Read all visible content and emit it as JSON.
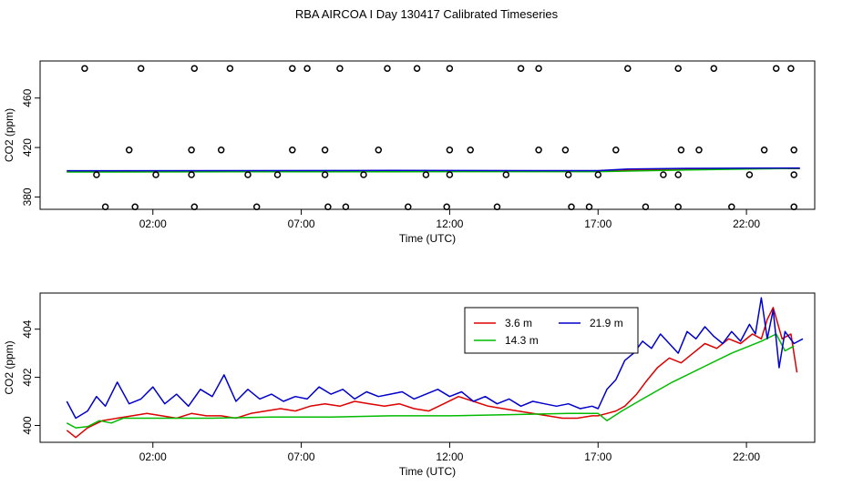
{
  "title": "RBA AIRCOA I  Day 130417  Calibrated Timeseries",
  "colors": {
    "s36": "#dd0000",
    "s143": "#00bb00",
    "s219": "#0000cc",
    "markers": "#000000"
  },
  "chart_data": [
    {
      "type": "line",
      "title": "",
      "xlabel": "Time (UTC)",
      "ylabel": "CO2 (ppm)",
      "xlim": [
        -1.8,
        24.3
      ],
      "ylim": [
        370,
        490
      ],
      "x_ticks": [
        2,
        7,
        12,
        17,
        22
      ],
      "x_tick_labels": [
        "02:00",
        "07:00",
        "12:00",
        "17:00",
        "22:00"
      ],
      "y_ticks": [
        380,
        420,
        460
      ],
      "y_tick_labels": [
        "380",
        "420",
        "460"
      ],
      "grid": false,
      "legend": "none",
      "series": [
        {
          "color": "#dd0000",
          "x": [
            -0.9,
            5,
            10,
            15,
            17,
            18,
            20,
            22,
            23.8
          ],
          "y": [
            400.5,
            400.6,
            400.8,
            400.7,
            400.6,
            401.6,
            402.2,
            402.9,
            403
          ]
        },
        {
          "color": "#00bb00",
          "x": [
            -0.9,
            5,
            10,
            15,
            17,
            18,
            20,
            22,
            23.8
          ],
          "y": [
            400.2,
            400.3,
            400.4,
            400.5,
            400.5,
            400.9,
            401.8,
            402.6,
            403.1
          ]
        },
        {
          "color": "#0000cc",
          "x": [
            -0.9,
            5,
            10,
            15,
            17,
            18,
            20,
            22,
            23.8
          ],
          "y": [
            401.2,
            401.3,
            401.4,
            401.3,
            401.3,
            402.6,
            403.1,
            403.3,
            403.4
          ]
        }
      ],
      "markers": {
        "style": "open-circle",
        "x": [
          -0.3,
          1.6,
          3.4,
          4.6,
          6.7,
          7.2,
          8.3,
          9.9,
          10.9,
          12.0,
          14.4,
          15.0,
          18.0,
          19.7,
          20.9,
          23.0,
          23.5,
          1.2,
          3.3,
          4.3,
          6.7,
          7.8,
          9.6,
          12.0,
          12.7,
          15.0,
          15.9,
          17.6,
          19.8,
          20.4,
          22.6,
          23.6,
          0.1,
          2.1,
          3.3,
          5.2,
          6.2,
          7.8,
          9.1,
          11.2,
          12.0,
          13.9,
          16.0,
          17.0,
          19.2,
          19.7,
          22.1,
          23.6,
          0.4,
          1.4,
          3.4,
          5.5,
          7.9,
          8.5,
          10.6,
          11.9,
          13.6,
          16.1,
          16.7,
          18.6,
          19.7,
          21.5,
          23.6
        ],
        "y": [
          484,
          484,
          484,
          484,
          484,
          484,
          484,
          484,
          484,
          484,
          484,
          484,
          484,
          484,
          484,
          484,
          484,
          418,
          418,
          418,
          418,
          418,
          418,
          418,
          418,
          418,
          418,
          418,
          418,
          418,
          418,
          418,
          398,
          398,
          398,
          398,
          398,
          398,
          398,
          398,
          398,
          398,
          398,
          398,
          398,
          398,
          398,
          398,
          372,
          372,
          372,
          372,
          372,
          372,
          372,
          372,
          372,
          372,
          372,
          372,
          372,
          372,
          372
        ]
      }
    },
    {
      "type": "line",
      "title": "",
      "xlabel": "Time (UTC)",
      "ylabel": "CO2 (ppm)",
      "xlim": [
        -1.8,
        24.3
      ],
      "ylim": [
        399.3,
        405.5
      ],
      "x_ticks": [
        2,
        7,
        12,
        17,
        22
      ],
      "x_tick_labels": [
        "02:00",
        "07:00",
        "12:00",
        "17:00",
        "22:00"
      ],
      "y_ticks": [
        400,
        402,
        404
      ],
      "y_tick_labels": [
        "400",
        "402",
        "404"
      ],
      "grid": false,
      "legend": "top-right",
      "series": [
        {
          "name": "3.6 m",
          "color": "#dd0000",
          "x": [
            -0.9,
            -0.6,
            -0.2,
            0.3,
            0.8,
            1.3,
            1.8,
            2.3,
            2.8,
            3.3,
            3.8,
            4.3,
            4.8,
            5.3,
            5.8,
            6.3,
            6.8,
            7.3,
            7.8,
            8.3,
            8.8,
            9.3,
            9.8,
            10.3,
            10.8,
            11.3,
            11.8,
            12.3,
            12.8,
            13.3,
            13.8,
            14.3,
            14.8,
            15.3,
            15.8,
            16.3,
            16.8,
            17.0,
            17.3,
            17.6,
            17.9,
            18.3,
            18.6,
            19.0,
            19.4,
            19.8,
            20.2,
            20.6,
            21.0,
            21.4,
            21.8,
            22.2,
            22.5,
            22.7,
            22.9,
            23.2,
            23.5,
            23.7
          ],
          "y": [
            399.8,
            399.5,
            399.9,
            400.2,
            400.3,
            400.4,
            400.5,
            400.4,
            400.3,
            400.5,
            400.4,
            400.4,
            400.3,
            400.5,
            400.6,
            400.7,
            400.6,
            400.8,
            400.9,
            400.8,
            401.0,
            400.9,
            400.8,
            400.9,
            400.7,
            400.6,
            400.9,
            401.2,
            401.0,
            400.8,
            400.7,
            400.6,
            400.5,
            400.4,
            400.3,
            400.3,
            400.4,
            400.4,
            400.5,
            400.6,
            400.8,
            401.3,
            401.8,
            402.4,
            402.8,
            402.6,
            403.0,
            403.4,
            403.2,
            403.6,
            403.4,
            403.8,
            403.6,
            404.4,
            404.9,
            403.6,
            403.8,
            402.2
          ]
        },
        {
          "name": "14.3 m",
          "color": "#00bb00",
          "x": [
            -0.9,
            -0.6,
            -0.2,
            0.2,
            0.6,
            1.0,
            2.0,
            4.0,
            6.0,
            8.0,
            10.0,
            12.0,
            14.0,
            16.0,
            17.0,
            17.3,
            17.8,
            18.5,
            19.5,
            20.5,
            21.5,
            22.5,
            23.0,
            23.3,
            23.6
          ],
          "y": [
            400.1,
            399.9,
            399.95,
            400.2,
            400.1,
            400.3,
            400.3,
            400.3,
            400.35,
            400.35,
            400.4,
            400.4,
            400.45,
            400.5,
            400.5,
            400.2,
            400.6,
            401.1,
            401.8,
            402.4,
            403.0,
            403.5,
            403.8,
            403.1,
            403.3
          ]
        },
        {
          "name": "21.9 m",
          "color": "#0000cc",
          "x": [
            -0.9,
            -0.6,
            -0.2,
            0.1,
            0.4,
            0.8,
            1.2,
            1.6,
            2.0,
            2.4,
            2.8,
            3.2,
            3.6,
            4.0,
            4.4,
            4.8,
            5.2,
            5.6,
            6.0,
            6.4,
            6.8,
            7.2,
            7.6,
            8.0,
            8.4,
            8.8,
            9.2,
            9.6,
            10.0,
            10.4,
            10.8,
            11.2,
            11.6,
            12.0,
            12.4,
            12.8,
            13.2,
            13.6,
            14.0,
            14.4,
            14.8,
            15.2,
            15.6,
            16.0,
            16.4,
            16.8,
            17.0,
            17.3,
            17.6,
            17.9,
            18.2,
            18.5,
            18.8,
            19.1,
            19.4,
            19.7,
            20.0,
            20.3,
            20.6,
            20.9,
            21.2,
            21.5,
            21.8,
            22.1,
            22.3,
            22.5,
            22.7,
            22.9,
            23.1,
            23.3,
            23.6,
            23.9
          ],
          "y": [
            401.0,
            400.3,
            400.6,
            401.2,
            400.8,
            401.8,
            400.9,
            401.1,
            401.6,
            400.9,
            401.3,
            400.8,
            401.5,
            401.2,
            402.1,
            401.0,
            401.5,
            401.1,
            401.3,
            401.0,
            401.2,
            401.1,
            401.6,
            401.3,
            401.5,
            401.1,
            401.4,
            401.2,
            401.3,
            401.4,
            401.1,
            401.3,
            401.5,
            401.2,
            401.4,
            401.0,
            401.2,
            400.9,
            401.1,
            400.8,
            401.0,
            400.9,
            400.8,
            400.9,
            400.7,
            400.8,
            400.7,
            401.5,
            401.9,
            402.7,
            403.0,
            403.5,
            403.2,
            403.8,
            403.4,
            403.0,
            403.9,
            403.6,
            404.1,
            403.7,
            403.4,
            403.9,
            403.5,
            404.2,
            403.8,
            405.3,
            403.6,
            404.8,
            402.4,
            403.9,
            403.4,
            403.6
          ]
        }
      ]
    }
  ]
}
